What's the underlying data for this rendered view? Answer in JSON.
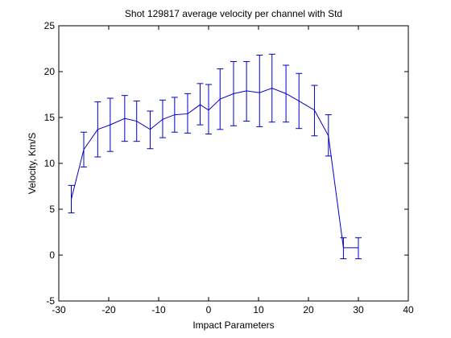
{
  "chart_data": {
    "type": "line",
    "title": "Shot 129817 average velocity per channel with Std",
    "xlabel": "Impact Parameters",
    "ylabel": "Velocity, Km/S",
    "xlim": [
      -30,
      40
    ],
    "ylim": [
      -5,
      25
    ],
    "xticks": [
      -30,
      -20,
      -10,
      0,
      10,
      20,
      30,
      40
    ],
    "yticks": [
      -5,
      0,
      5,
      10,
      15,
      20,
      25
    ],
    "grid": false,
    "legend": "none",
    "line_color": "#0000cc",
    "series": [
      {
        "x": [
          -27.5,
          -25.0,
          -22.2,
          -19.7,
          -16.8,
          -14.4,
          -11.7,
          -9.2,
          -6.8,
          -4.2,
          -1.7,
          0.0,
          2.3,
          5.0,
          7.6,
          10.2,
          12.7,
          15.5,
          18.1,
          21.2,
          24.0,
          27.0,
          30.0
        ],
        "y": [
          6.1,
          11.5,
          13.7,
          14.2,
          14.9,
          14.6,
          13.7,
          14.8,
          15.3,
          15.4,
          16.4,
          15.8,
          17.0,
          17.6,
          17.9,
          17.7,
          18.2,
          17.6,
          16.8,
          15.8,
          13.0,
          0.8,
          0.8
        ],
        "yerr_low": [
          4.6,
          9.6,
          10.7,
          11.3,
          12.4,
          12.4,
          11.6,
          12.8,
          13.4,
          13.3,
          14.2,
          13.2,
          13.7,
          14.1,
          14.6,
          14.0,
          14.5,
          14.5,
          13.8,
          13.0,
          10.8,
          -0.4,
          -0.4
        ],
        "yerr_high": [
          7.6,
          13.4,
          16.7,
          17.1,
          17.4,
          16.8,
          15.7,
          16.9,
          17.2,
          17.6,
          18.7,
          18.6,
          20.3,
          21.1,
          21.1,
          21.8,
          21.9,
          20.7,
          19.8,
          18.5,
          15.3,
          1.9,
          1.9
        ]
      }
    ]
  }
}
